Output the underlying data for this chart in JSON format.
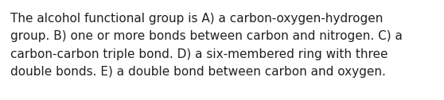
{
  "lines": [
    "The alcohol functional group is A) a carbon-oxygen-hydrogen",
    "group. B) one or more bonds between carbon and nitrogen. C) a",
    "carbon-carbon triple bond. D) a six-membered ring with three",
    "double bonds. E) a double bond between carbon and oxygen."
  ],
  "background_color": "#ffffff",
  "text_color": "#231f20",
  "font_size": 11.0,
  "fig_width": 5.58,
  "fig_height": 1.26,
  "dpi": 100
}
